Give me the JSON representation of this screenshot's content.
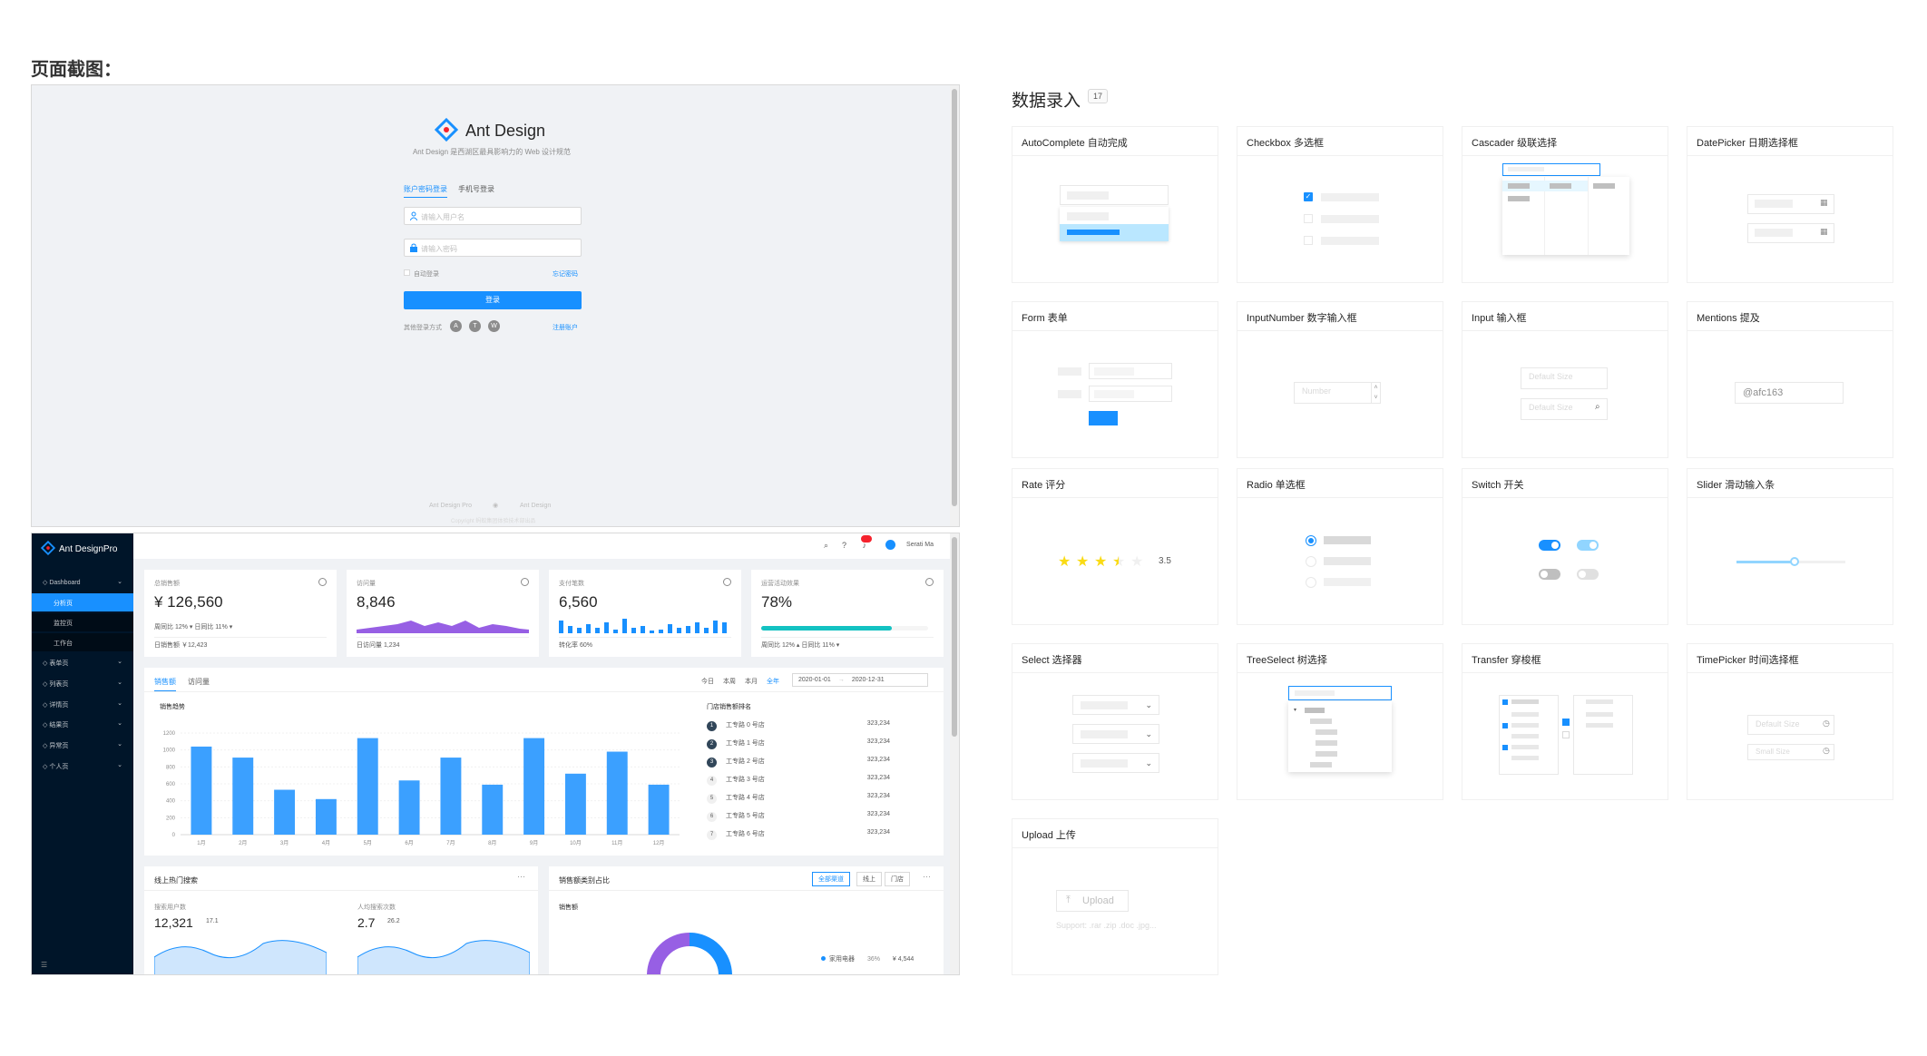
{
  "page_heading": "页面截图：",
  "login": {
    "logo_text": "Ant Design",
    "desc": "Ant Design 是西湖区最具影响力的 Web 设计规范",
    "tabs": [
      "账户密码登录",
      "手机号登录"
    ],
    "username_placeholder": "请输入用户名",
    "password_placeholder": "请输入密码",
    "remember": "自动登录",
    "forgot": "忘记密码",
    "submit": "登录",
    "other_login": "其他登录方式",
    "register": "注册账户",
    "footer_links": [
      "Ant Design Pro",
      "Ant Design"
    ],
    "copyright": "Copyright 蚂蚁集团体验技术部出品"
  },
  "dashboard": {
    "brand": "Ant DesignPro",
    "user": "Serati Ma",
    "menu": [
      {
        "label": "Dashboard",
        "type": "parent"
      },
      {
        "label": "分析页",
        "type": "selected"
      },
      {
        "label": "监控页",
        "type": "sub"
      },
      {
        "label": "工作台",
        "type": "sub"
      },
      {
        "label": "表单页",
        "type": "parent"
      },
      {
        "label": "列表页",
        "type": "parent"
      },
      {
        "label": "详情页",
        "type": "parent"
      },
      {
        "label": "结果页",
        "type": "parent"
      },
      {
        "label": "异常页",
        "type": "parent"
      },
      {
        "label": "个人页",
        "type": "parent"
      }
    ],
    "stats": [
      {
        "label": "总销售额",
        "value": "¥ 126,560",
        "mid": "周同比 12% ▾   日同比 11% ▾",
        "foot": "日销售额 ￥12,423"
      },
      {
        "label": "访问量",
        "value": "8,846",
        "foot": "日访问量 1,234"
      },
      {
        "label": "支付笔数",
        "value": "6,560",
        "foot": "转化率 60%"
      },
      {
        "label": "运营活动效果",
        "value": "78%",
        "foot": "周同比 12% ▴   日同比 11% ▾"
      }
    ],
    "sales_tabs": [
      "销售额",
      "访问量"
    ],
    "range_tabs": [
      "今日",
      "本周",
      "本月",
      "全年"
    ],
    "date_start": "2020-01-01",
    "date_end": "2020-12-31",
    "trend_title": "销售趋势",
    "ranking_title": "门店销售额排名",
    "ranking": [
      {
        "rank": "1",
        "name": "工专路 0 号店",
        "value": "323,234"
      },
      {
        "rank": "2",
        "name": "工专路 1 号店",
        "value": "323,234"
      },
      {
        "rank": "3",
        "name": "工专路 2 号店",
        "value": "323,234"
      },
      {
        "rank": "4",
        "name": "工专路 3 号店",
        "value": "323,234"
      },
      {
        "rank": "5",
        "name": "工专路 4 号店",
        "value": "323,234"
      },
      {
        "rank": "6",
        "name": "工专路 5 号店",
        "value": "323,234"
      },
      {
        "rank": "7",
        "name": "工专路 6 号店",
        "value": "323,234"
      }
    ],
    "search_card_title": "线上热门搜索",
    "search_users_label": "搜索用户数",
    "search_users_value": "12,321",
    "search_users_change": "17.1",
    "per_capita_label": "人均搜索次数",
    "per_capita_value": "2.7",
    "per_capita_change": "26.2",
    "category_card_title": "销售额类别占比",
    "category_tabs": [
      "全部渠道",
      "线上",
      "门店"
    ],
    "category_sub": "销售额",
    "legend_item": "家用电器",
    "legend_pct": "36%",
    "legend_val": "¥ 4,544"
  },
  "chart_data": {
    "type": "bar",
    "categories": [
      "1月",
      "2月",
      "3月",
      "4月",
      "5月",
      "6月",
      "7月",
      "8月",
      "9月",
      "10月",
      "11月",
      "12月"
    ],
    "values": [
      1040,
      910,
      530,
      420,
      1140,
      640,
      910,
      590,
      1140,
      720,
      980,
      590
    ],
    "ylim": [
      0,
      1200
    ],
    "yticks": [
      0,
      200,
      400,
      600,
      800,
      1000,
      1200
    ]
  },
  "components": {
    "title": "数据录入",
    "count": "17",
    "items": [
      {
        "id": "autocomplete",
        "title": "AutoComplete 自动完成"
      },
      {
        "id": "checkbox",
        "title": "Checkbox 多选框"
      },
      {
        "id": "cascader",
        "title": "Cascader 级联选择"
      },
      {
        "id": "datepicker",
        "title": "DatePicker 日期选择框"
      },
      {
        "id": "form",
        "title": "Form 表单"
      },
      {
        "id": "inputnumber",
        "title": "InputNumber 数字输入框",
        "placeholder": "Number"
      },
      {
        "id": "input",
        "title": "Input 输入框",
        "placeholder": "Default Size"
      },
      {
        "id": "mentions",
        "title": "Mentions 提及",
        "value": "@afc163"
      },
      {
        "id": "rate",
        "title": "Rate 评分",
        "value": "3.5"
      },
      {
        "id": "radio",
        "title": "Radio 单选框"
      },
      {
        "id": "switch",
        "title": "Switch 开关"
      },
      {
        "id": "slider",
        "title": "Slider 滑动输入条"
      },
      {
        "id": "select",
        "title": "Select 选择器"
      },
      {
        "id": "treeselect",
        "title": "TreeSelect 树选择"
      },
      {
        "id": "transfer",
        "title": "Transfer 穿梭框"
      },
      {
        "id": "timepicker",
        "title": "TimePicker 时间选择框",
        "placeholder": "Default Size",
        "placeholder2": "Small Size"
      },
      {
        "id": "upload",
        "title": "Upload 上传",
        "button": "Upload",
        "hint": "Support: .rar .zip .doc .jpg..."
      }
    ]
  }
}
